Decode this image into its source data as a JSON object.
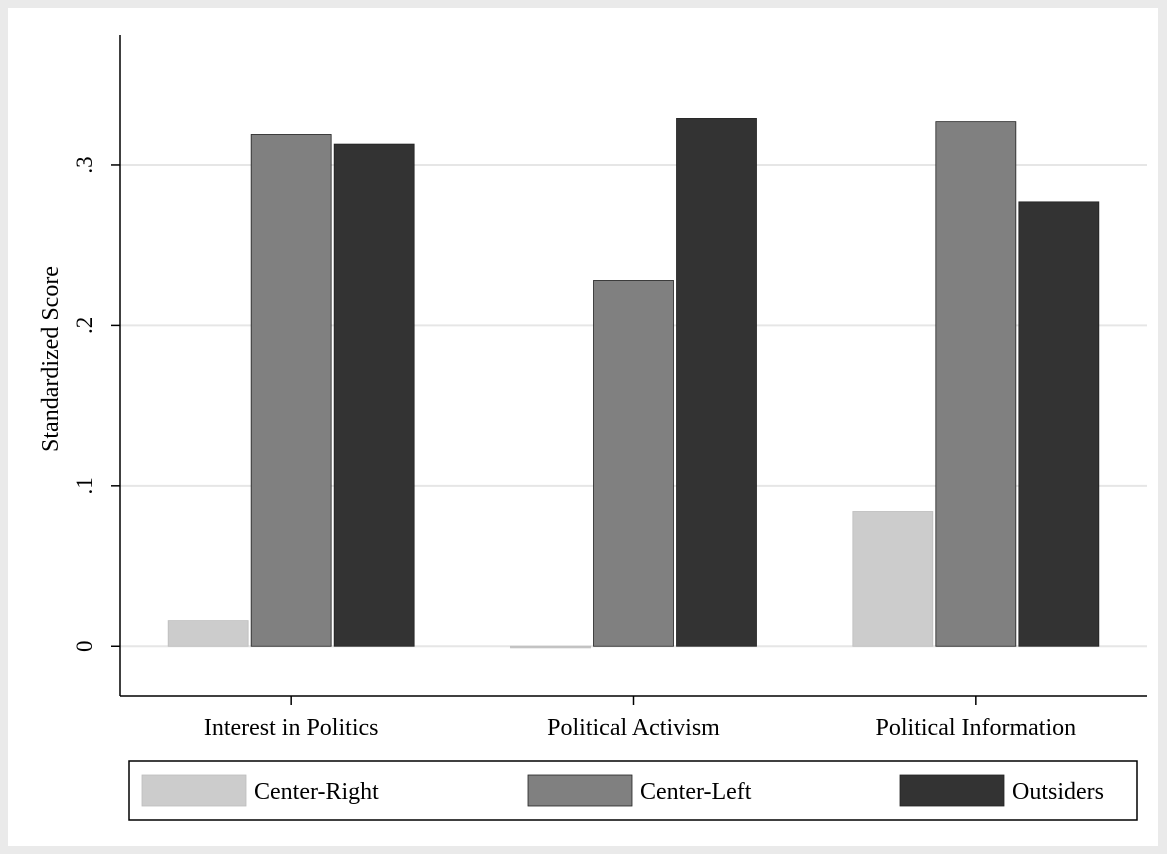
{
  "chart_data": {
    "type": "bar",
    "title": "",
    "xlabel": "",
    "ylabel": "Standardized Score",
    "categories": [
      "Interest in Politics",
      "Political Activism",
      "Political Information"
    ],
    "series": [
      {
        "name": "Center-Right",
        "color": "#cccccc",
        "values": [
          0.016,
          -0.001,
          0.084
        ]
      },
      {
        "name": "Center-Left",
        "color": "#808080",
        "values": [
          0.319,
          0.228,
          0.327
        ]
      },
      {
        "name": "Outsiders",
        "color": "#333333",
        "values": [
          0.313,
          0.329,
          0.277
        ]
      }
    ],
    "ylim": [
      -0.031,
      0.381
    ],
    "yticks": [
      {
        "value": 0,
        "label": "0"
      },
      {
        "value": 0.1,
        "label": ".1"
      },
      {
        "value": 0.2,
        "label": ".2"
      },
      {
        "value": 0.3,
        "label": ".3"
      }
    ],
    "grid": true,
    "legend": "bottom"
  }
}
